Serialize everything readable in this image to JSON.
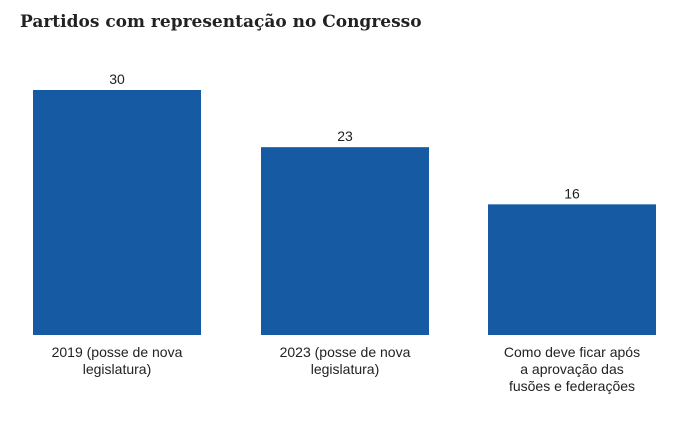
{
  "chart_data": {
    "type": "bar",
    "title": "Partidos com representação no Congresso",
    "categories": [
      [
        "2019 (posse de nova",
        "legislatura)"
      ],
      [
        "2023 (posse de nova",
        "legislatura)"
      ],
      [
        "Como deve ficar após",
        "a aprovação das",
        "fusões e federações"
      ]
    ],
    "values": [
      30,
      23,
      16
    ],
    "ylim": [
      0,
      30
    ],
    "bar_color": "#155aa3",
    "grid": false
  }
}
